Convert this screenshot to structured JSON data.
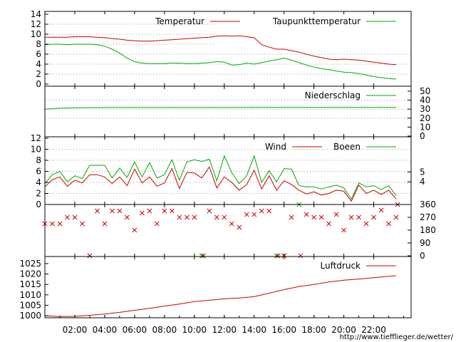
{
  "chart_data": {
    "type": "line",
    "footer_link": "http://www.tiefflieger.de/wetter/",
    "x_ticks": [
      "02:00",
      "04:00",
      "06:00",
      "08:00",
      "10:00",
      "12:00",
      "14:00",
      "16:00",
      "18:00",
      "20:00",
      "22:00"
    ],
    "x_tick_hours": [
      2,
      4,
      6,
      8,
      10,
      12,
      14,
      16,
      18,
      20,
      22
    ],
    "colors": {
      "red": "#cc0000",
      "green": "#00aa00",
      "grid": "#999999",
      "axis": "#000000"
    },
    "panels": {
      "temperature": {
        "ylim": [
          0,
          14
        ],
        "y_ticks": [
          "0",
          "2",
          "4",
          "6",
          "8",
          "10",
          "12",
          "14"
        ],
        "y_tick_values": [
          0,
          2,
          4,
          6,
          8,
          10,
          12,
          14
        ],
        "series": [
          {
            "name": "Temperatur",
            "color": "#cc0000",
            "x": [
              0,
              0.5,
              1,
              1.5,
              2,
              2.5,
              3,
              3.5,
              4,
              4.5,
              5,
              5.5,
              6,
              6.5,
              7,
              7.5,
              8,
              8.5,
              9,
              9.5,
              10,
              10.5,
              11,
              11.5,
              12,
              12.5,
              13,
              13.5,
              14,
              14.5,
              15,
              15.5,
              16,
              16.5,
              17,
              17.5,
              18,
              18.5,
              19,
              19.5,
              20,
              20.5,
              21,
              21.5,
              22,
              22.5,
              23,
              23.5
            ],
            "y": [
              9.4,
              9.4,
              9.4,
              9.4,
              9.5,
              9.5,
              9.5,
              9.4,
              9.3,
              9.1,
              9.0,
              8.8,
              8.7,
              8.6,
              8.6,
              8.7,
              8.8,
              8.9,
              9.0,
              9.1,
              9.2,
              9.3,
              9.4,
              9.6,
              9.7,
              9.6,
              9.7,
              9.5,
              9.3,
              7.9,
              7.4,
              7.0,
              7.0,
              6.7,
              6.4,
              6.0,
              5.6,
              5.3,
              5.0,
              4.9,
              5.0,
              4.9,
              4.8,
              4.6,
              4.4,
              4.2,
              4.0,
              3.9
            ]
          },
          {
            "name": "Taupunkttemperatur",
            "color": "#00aa00",
            "x": [
              0,
              0.5,
              1,
              1.5,
              2,
              2.5,
              3,
              3.5,
              4,
              4.5,
              5,
              5.5,
              6,
              6.5,
              7,
              7.5,
              8,
              8.5,
              9,
              9.5,
              10,
              10.5,
              11,
              11.5,
              12,
              12.5,
              13,
              13.5,
              14,
              14.5,
              15,
              15.5,
              16,
              16.5,
              17,
              17.5,
              18,
              18.5,
              19,
              19.5,
              20,
              20.5,
              21,
              21.5,
              22,
              22.5,
              23,
              23.5
            ],
            "y": [
              7.9,
              8.0,
              8.0,
              7.9,
              8.0,
              8.0,
              8.0,
              7.9,
              7.6,
              7.0,
              6.2,
              5.2,
              4.5,
              4.2,
              4.1,
              4.1,
              4.1,
              4.2,
              4.2,
              4.1,
              4.1,
              4.2,
              4.3,
              4.5,
              4.4,
              3.8,
              3.9,
              4.2,
              4.0,
              4.3,
              4.6,
              4.9,
              5.2,
              4.8,
              4.3,
              3.8,
              3.4,
              3.1,
              2.9,
              2.6,
              2.4,
              2.3,
              2.1,
              1.8,
              1.5,
              1.3,
              1.1,
              1.0
            ]
          }
        ]
      },
      "precipitation": {
        "ylim": [
          0,
          50
        ],
        "y_ticks": [
          "0",
          "10",
          "20",
          "30",
          "40",
          "50"
        ],
        "y_tick_values": [
          0,
          10,
          20,
          30,
          40,
          50
        ],
        "series": [
          {
            "name": "Niederschlag",
            "color": "#00aa00",
            "x": [
              0,
              1,
              2,
              4,
              8,
              12,
              16,
              20,
              23.5
            ],
            "y": [
              30.0,
              31.0,
              31.6,
              31.8,
              31.8,
              31.8,
              32.0,
              32.0,
              32.0
            ]
          }
        ]
      },
      "wind": {
        "ylim": [
          0,
          12
        ],
        "y_ticks": [
          "0",
          "2",
          "4",
          "6",
          "8",
          "10",
          "12"
        ],
        "y_tick_values": [
          0,
          2,
          4,
          6,
          8,
          10,
          12
        ],
        "right_ticks": [
          "4",
          "5"
        ],
        "right_tick_values": [
          4.1,
          5.9
        ],
        "series": [
          {
            "name": "Wind",
            "color": "#cc0000",
            "x": [
              0,
              0.5,
              1,
              1.5,
              2,
              2.5,
              3,
              3.5,
              4,
              4.5,
              5,
              5.5,
              6,
              6.5,
              7,
              7.5,
              8,
              8.5,
              9,
              9.5,
              10,
              10.5,
              11,
              11.5,
              12,
              12.5,
              13,
              13.5,
              14,
              14.5,
              15,
              15.5,
              16,
              16.5,
              17,
              17.5,
              18,
              18.5,
              19,
              19.5,
              20,
              20.5,
              21,
              21.5,
              22,
              22.5,
              23,
              23.5
            ],
            "y": [
              3.2,
              4.5,
              5.0,
              3.3,
              4.4,
              3.9,
              5.4,
              5.4,
              5.0,
              3.8,
              5.0,
              3.4,
              6.4,
              3.9,
              5.0,
              3.3,
              3.9,
              6.5,
              2.9,
              5.8,
              5.7,
              4.8,
              6.8,
              3.0,
              5.0,
              4.0,
              2.6,
              3.6,
              6.2,
              2.8,
              5.2,
              2.6,
              4.3,
              3.6,
              2.6,
              1.9,
              2.3,
              1.7,
              2.0,
              2.6,
              2.4,
              0.6,
              3.5,
              2.0,
              2.6,
              1.8,
              2.6,
              1.0
            ]
          },
          {
            "name": "Boeen",
            "color": "#00aa00",
            "x": [
              0,
              0.5,
              1,
              1.5,
              2,
              2.5,
              3,
              3.5,
              4,
              4.5,
              5,
              5.5,
              6,
              6.5,
              7,
              7.5,
              8,
              8.5,
              9,
              9.5,
              10,
              10.5,
              11,
              11.5,
              12,
              12.5,
              13,
              13.5,
              14,
              14.5,
              15,
              15.5,
              16,
              16.5,
              17,
              17.5,
              18,
              18.5,
              19,
              19.5,
              20,
              20.5,
              21,
              21.5,
              22,
              22.5,
              23,
              23.5
            ],
            "y": [
              3.8,
              5.4,
              6.0,
              4.1,
              5.2,
              4.7,
              7.1,
              7.1,
              7.1,
              4.8,
              6.6,
              4.9,
              7.7,
              5.0,
              7.6,
              4.8,
              5.4,
              8.1,
              4.4,
              7.7,
              8.1,
              7.8,
              8.2,
              4.3,
              8.8,
              5.8,
              3.8,
              5.2,
              8.8,
              4.0,
              6.1,
              4.1,
              6.5,
              6.4,
              3.4,
              3.2,
              3.2,
              2.8,
              3.2,
              3.5,
              3.0,
              1.0,
              3.9,
              3.2,
              3.4,
              2.7,
              3.4,
              1.6
            ]
          }
        ]
      },
      "wind_direction": {
        "ylim": [
          0,
          360
        ],
        "y_ticks": [
          "0",
          "90",
          "180",
          "270",
          "360"
        ],
        "y_tick_values": [
          0,
          90,
          180,
          270,
          360
        ],
        "x": [
          0,
          0.5,
          1,
          1.5,
          2,
          2.5,
          3,
          3.5,
          4,
          4.5,
          5,
          5.5,
          6,
          6.5,
          7,
          7.5,
          8,
          8.5,
          9,
          9.5,
          10,
          10.5,
          11,
          11.5,
          12,
          12.5,
          13,
          13.5,
          14,
          14.5,
          15,
          15.5,
          16,
          16.5,
          17,
          17.5,
          18,
          18.5,
          19,
          19.5,
          20,
          20.5,
          21,
          21.5,
          22,
          22.5,
          23,
          23.5
        ],
        "y": [
          225,
          225,
          225,
          270,
          270,
          225,
          0,
          315,
          225,
          315,
          315,
          270,
          180,
          300,
          315,
          225,
          315,
          315,
          270,
          270,
          270,
          0,
          315,
          270,
          270,
          225,
          200,
          290,
          290,
          315,
          315,
          0,
          0,
          270,
          360,
          290,
          270,
          270,
          225,
          290,
          180,
          270,
          270,
          225,
          270,
          320,
          225,
          270
        ],
        "extra_markers": {
          "x": [
            3,
            10.6,
            15.6,
            16,
            17.1,
            23.6
          ],
          "y": [
            0,
            0,
            0,
            0,
            0,
            360
          ]
        }
      },
      "pressure": {
        "ylim": [
          999,
          1026
        ],
        "y_ticks": [
          "1000",
          "1005",
          "1010",
          "1015",
          "1020",
          "1025"
        ],
        "y_tick_values": [
          1000,
          1005,
          1010,
          1015,
          1020,
          1025
        ],
        "series": [
          {
            "name": "Luftdruck",
            "color": "#cc0000",
            "x": [
              0,
              1,
              2,
              3,
              4,
              5,
              6,
              7,
              8,
              9,
              10,
              11,
              12,
              13,
              14,
              15,
              16,
              17,
              18,
              19,
              20,
              21,
              22,
              23,
              23.5
            ],
            "y": [
              1000.0,
              999.6,
              999.7,
              1000.2,
              1000.8,
              1001.6,
              1002.6,
              1003.5,
              1004.6,
              1005.6,
              1006.8,
              1007.4,
              1008.1,
              1008.5,
              1009.1,
              1010.8,
              1012.5,
              1014.0,
              1015.0,
              1016.2,
              1017.0,
              1017.6,
              1018.2,
              1018.9,
              1019.2
            ]
          }
        ]
      }
    }
  }
}
